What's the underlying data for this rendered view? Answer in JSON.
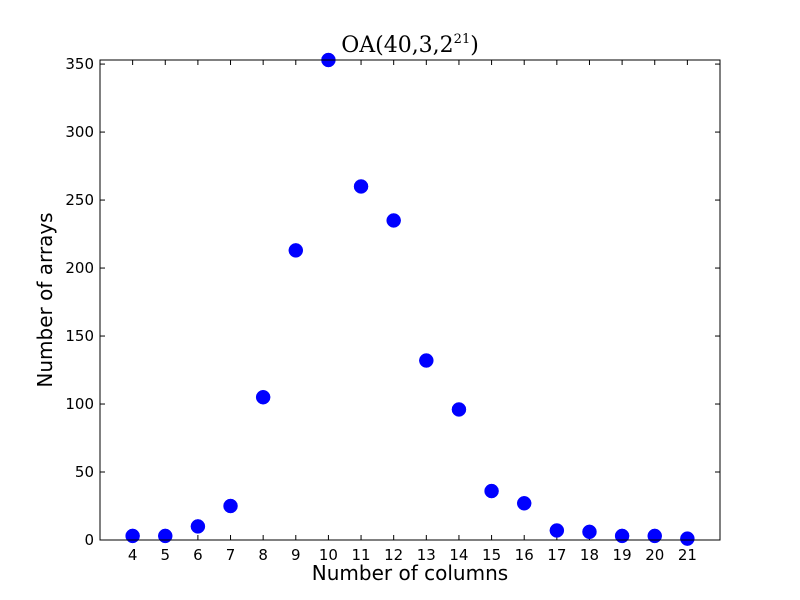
{
  "chart_data": {
    "type": "scatter",
    "title": "OA(40,3,2",
    "title_superscript": "21",
    "title_suffix": ")",
    "xlabel": "Number of columns",
    "ylabel": "Number of arrays",
    "xlim": [
      3,
      22
    ],
    "ylim": [
      0,
      353
    ],
    "xticks": [
      4,
      5,
      6,
      7,
      8,
      9,
      10,
      11,
      12,
      13,
      14,
      15,
      16,
      17,
      18,
      19,
      20,
      21
    ],
    "yticks": [
      0,
      50,
      100,
      150,
      200,
      250,
      300,
      350
    ],
    "marker_color": "#0000ff",
    "grid": false,
    "series": [
      {
        "x": [
          4,
          5,
          6,
          7,
          8,
          9,
          10,
          11,
          12,
          13,
          14,
          15,
          16,
          17,
          18,
          19,
          20,
          21
        ],
        "y": [
          3,
          3,
          10,
          25,
          105,
          213,
          353,
          260,
          235,
          132,
          96,
          36,
          27,
          7,
          6,
          3,
          3,
          1
        ]
      }
    ]
  }
}
